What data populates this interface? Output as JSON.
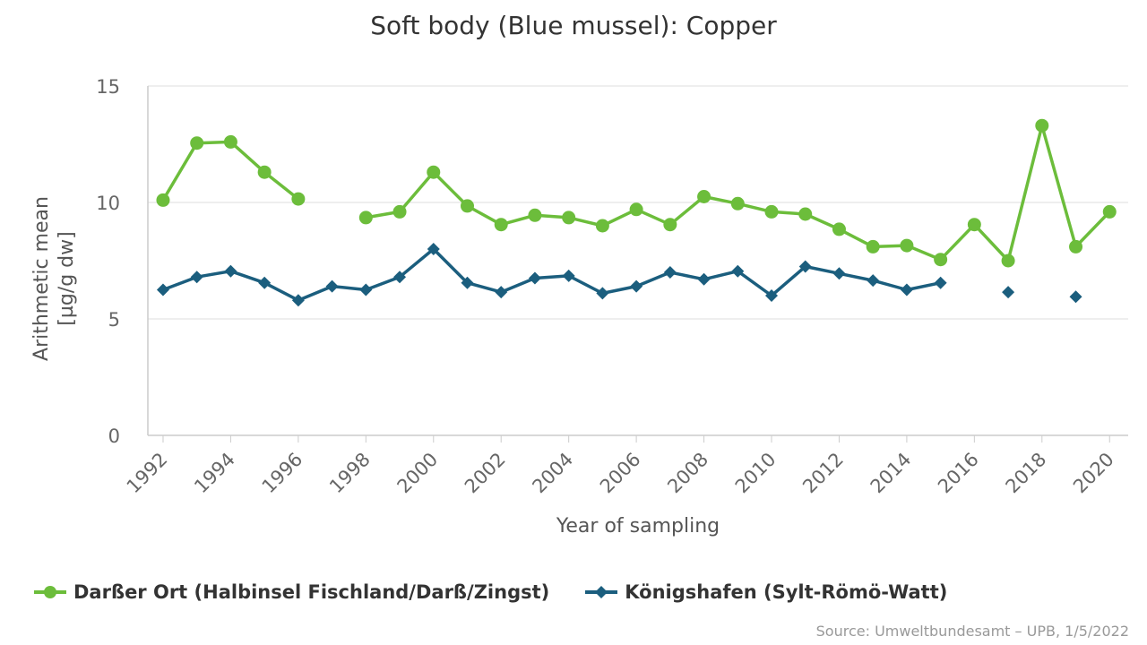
{
  "chart_data": {
    "type": "line",
    "title": "Soft body (Blue mussel): Copper",
    "xlabel": "Year of sampling",
    "ylabel_lines": [
      "Arithmetic mean",
      "[µg/g dw]"
    ],
    "ylim": [
      0,
      15
    ],
    "xlim": [
      1991.55,
      2020.55
    ],
    "y_ticks": [
      0,
      5,
      10,
      15
    ],
    "x_ticks": [
      1992,
      1994,
      1996,
      1998,
      2000,
      2002,
      2004,
      2006,
      2008,
      2010,
      2012,
      2014,
      2016,
      2018,
      2020
    ],
    "grid": true,
    "legend_position": "bottom-left",
    "series": [
      {
        "name": "Darßer Ort (Halbinsel Fischland/Darß/Zingst)",
        "color": "#6cbd3b",
        "marker": "circle",
        "points": [
          [
            1992,
            10.1
          ],
          [
            1993,
            12.55
          ],
          [
            1994,
            12.6
          ],
          [
            1995,
            11.3
          ],
          [
            1996,
            10.15
          ],
          [
            1997,
            null
          ],
          [
            1998,
            9.35
          ],
          [
            1999,
            9.6
          ],
          [
            2000,
            11.3
          ],
          [
            2001,
            9.85
          ],
          [
            2002,
            9.05
          ],
          [
            2003,
            9.45
          ],
          [
            2004,
            9.35
          ],
          [
            2005,
            9.0
          ],
          [
            2006,
            9.7
          ],
          [
            2007,
            9.05
          ],
          [
            2008,
            10.25
          ],
          [
            2009,
            9.95
          ],
          [
            2010,
            9.6
          ],
          [
            2011,
            9.5
          ],
          [
            2012,
            8.85
          ],
          [
            2013,
            8.1
          ],
          [
            2014,
            8.15
          ],
          [
            2015,
            7.55
          ],
          [
            2016,
            9.05
          ],
          [
            2017,
            7.5
          ],
          [
            2018,
            13.3
          ],
          [
            2019,
            8.1
          ],
          [
            2020,
            9.6
          ]
        ]
      },
      {
        "name": "Königshafen (Sylt-Römö-Watt)",
        "color": "#1b5e7e",
        "marker": "diamond",
        "points": [
          [
            1992,
            6.25
          ],
          [
            1993,
            6.8
          ],
          [
            1994,
            7.05
          ],
          [
            1995,
            6.55
          ],
          [
            1996,
            5.8
          ],
          [
            1997,
            6.4
          ],
          [
            1998,
            6.25
          ],
          [
            1999,
            6.8
          ],
          [
            2000,
            8.0
          ],
          [
            2001,
            6.55
          ],
          [
            2002,
            6.15
          ],
          [
            2003,
            6.75
          ],
          [
            2004,
            6.85
          ],
          [
            2005,
            6.1
          ],
          [
            2006,
            6.4
          ],
          [
            2007,
            7.0
          ],
          [
            2008,
            6.7
          ],
          [
            2009,
            7.05
          ],
          [
            2010,
            6.0
          ],
          [
            2011,
            7.25
          ],
          [
            2012,
            6.95
          ],
          [
            2013,
            6.65
          ],
          [
            2014,
            6.25
          ],
          [
            2015,
            6.55
          ],
          [
            2016,
            null
          ],
          [
            2017,
            6.15
          ],
          [
            2018,
            null
          ],
          [
            2019,
            5.95
          ]
        ]
      }
    ],
    "source": "Source: Umweltbundesamt – UPB, 1/5/2022"
  }
}
